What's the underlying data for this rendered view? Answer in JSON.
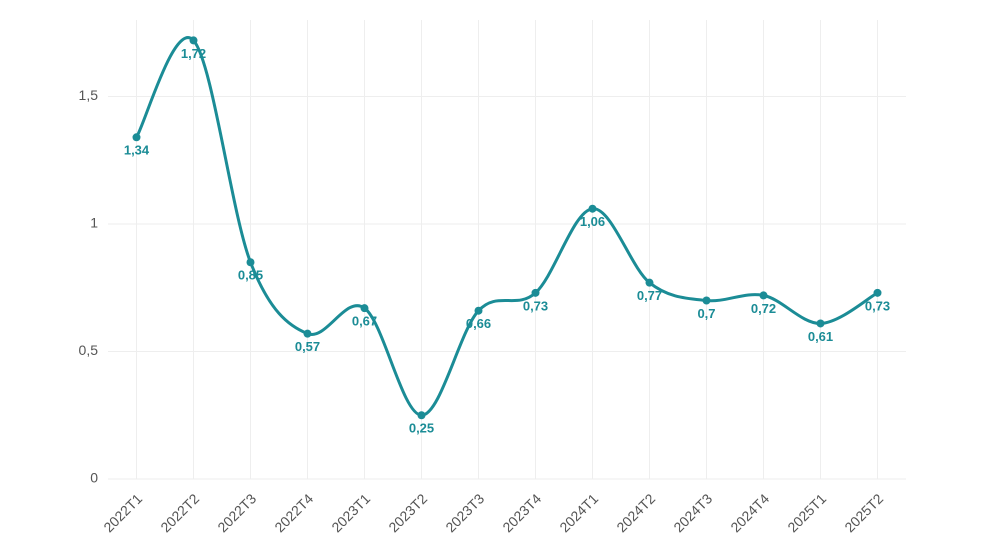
{
  "chart_data": {
    "type": "line",
    "categories": [
      "2022T1",
      "2022T2",
      "2022T3",
      "2022T4",
      "2023T1",
      "2023T2",
      "2023T3",
      "2023T4",
      "2024T1",
      "2024T2",
      "2024T3",
      "2024T4",
      "2025T1",
      "2025T2"
    ],
    "series": [
      {
        "color": "#1b8c96",
        "values": [
          1.34,
          1.72,
          0.85,
          0.57,
          0.67,
          0.25,
          0.66,
          0.73,
          1.06,
          0.77,
          0.7,
          0.72,
          0.61,
          0.73
        ],
        "value_labels": [
          "1,34",
          "1,72",
          "0,85",
          "0,57",
          "0,67",
          "0,25",
          "0,66",
          "0,73",
          "1,06",
          "0,77",
          "0,7",
          "0,72",
          "0,61",
          "0,73"
        ]
      }
    ],
    "ylim": [
      0,
      1.8
    ],
    "yticks": [
      0,
      {
        "value": 0.5,
        "label": "0,5"
      },
      1,
      {
        "value": 1.5,
        "label": "1,5"
      }
    ],
    "grid": true
  }
}
